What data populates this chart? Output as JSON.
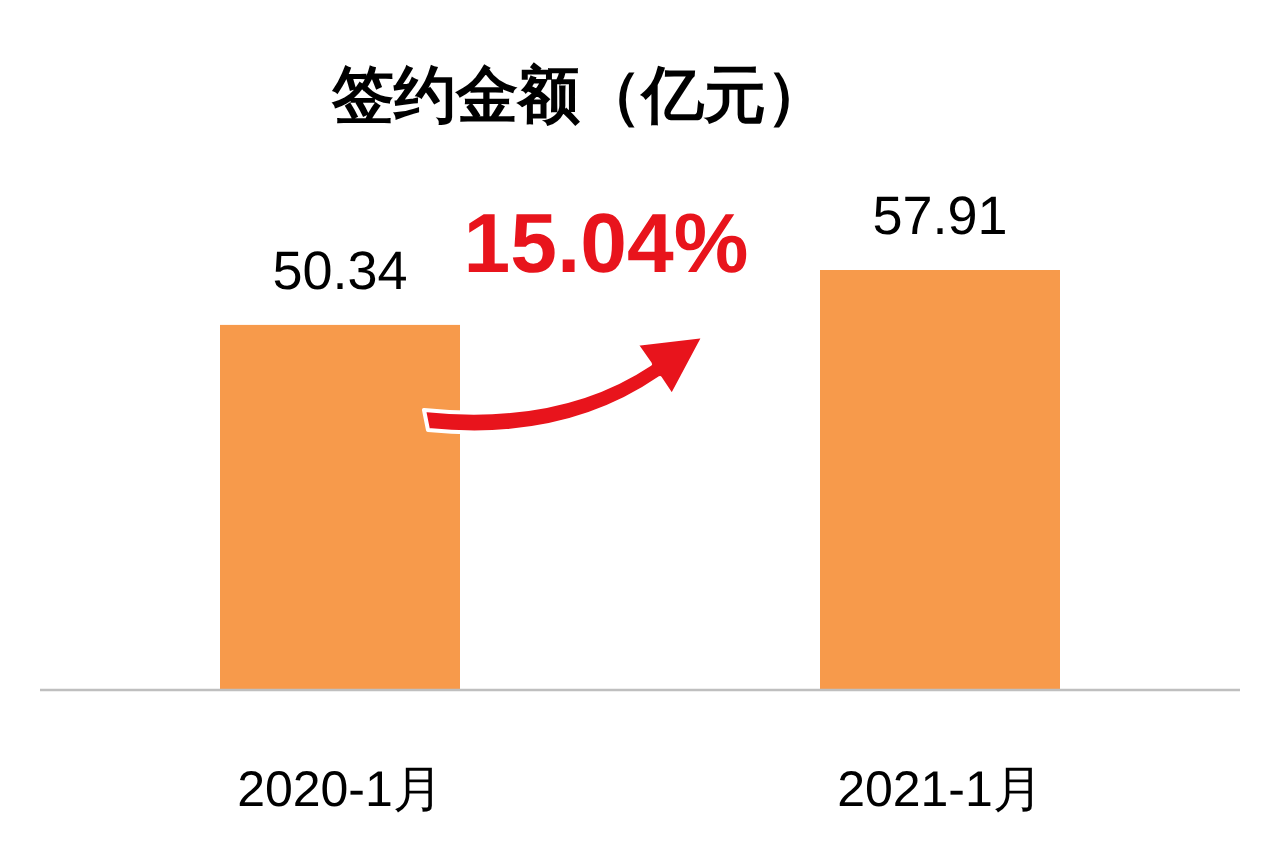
{
  "chart_data": {
    "type": "bar",
    "title": "签约金额（亿元）",
    "categories": [
      "2020-1月",
      "2021-1月"
    ],
    "values": [
      50.34,
      57.91
    ],
    "color": "#f79a4b",
    "data_labels": true,
    "annotations": [
      "15.04%"
    ]
  }
}
